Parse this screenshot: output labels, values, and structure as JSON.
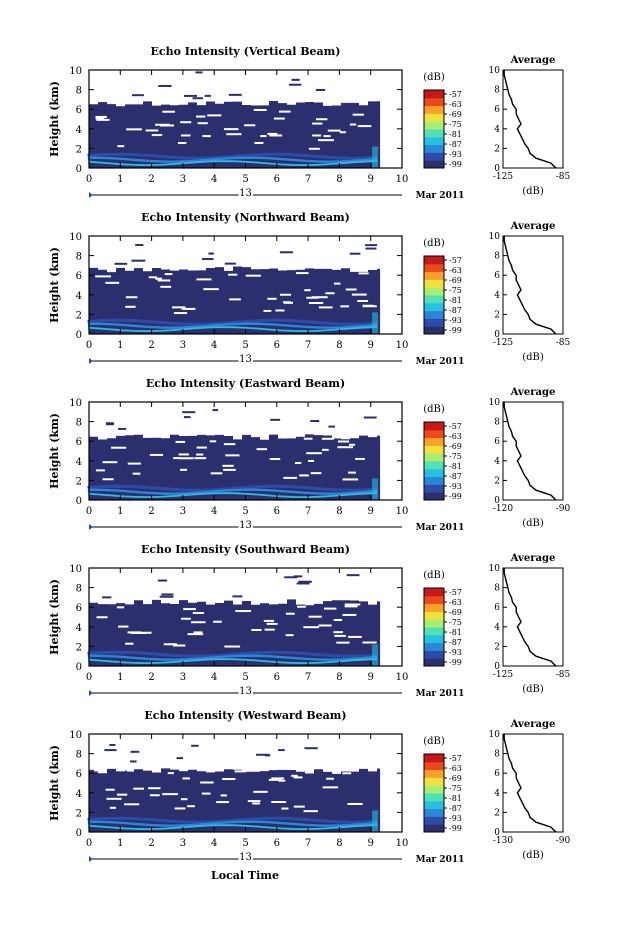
{
  "colorbar": {
    "unit": "(dB)",
    "tick_labels": [
      "-57",
      "-63",
      "-69",
      "-75",
      "-81",
      "-87",
      "-93",
      "-99"
    ],
    "colors": [
      "#2b2f6e",
      "#2f4ba8",
      "#2a86d6",
      "#27c0e0",
      "#52e0b6",
      "#a8ee72",
      "#f0e23a",
      "#f6a12a",
      "#ea4a1c",
      "#c61a1a"
    ]
  },
  "time_axis": {
    "tick_labels": [
      "0",
      "1",
      "2",
      "3",
      "4",
      "5",
      "6",
      "7",
      "8",
      "9",
      "10"
    ],
    "day_label": "13",
    "month_label": "Mar 2011",
    "xlabel": "Local Time"
  },
  "height_axis": {
    "ylabel": "Height (km)",
    "tick_labels": [
      "0",
      "2",
      "4",
      "6",
      "8",
      "10"
    ]
  },
  "panels": [
    {
      "title": "Echo Intensity (Vertical Beam)",
      "avg_title": "Average",
      "avg_xlabel": "(dB)",
      "avg_xticks": [
        "-125",
        "-85"
      ],
      "echo_top_km": 6.6,
      "noise_km": 9.3
    },
    {
      "title": "Echo Intensity (Northward Beam)",
      "avg_title": "Average",
      "avg_xlabel": "(dB)",
      "avg_xticks": [
        "-125",
        "-85"
      ],
      "echo_top_km": 6.6,
      "noise_km": 9.1
    },
    {
      "title": "Echo Intensity (Eastward Beam)",
      "avg_title": "Average",
      "avg_xlabel": "(dB)",
      "avg_xticks": [
        "-120",
        "-90"
      ],
      "echo_top_km": 6.4,
      "noise_km": 9.0
    },
    {
      "title": "Echo Intensity (Southward Beam)",
      "avg_title": "Average",
      "avg_xlabel": "(dB)",
      "avg_xticks": [
        "-125",
        "-85"
      ],
      "echo_top_km": 6.5,
      "noise_km": 9.2
    },
    {
      "title": "Echo Intensity (Westward Beam)",
      "avg_title": "Average",
      "avg_xlabel": "(dB)",
      "avg_xticks": [
        "-130",
        "-90"
      ],
      "echo_top_km": 6.2,
      "noise_km": 9.0
    }
  ],
  "chart_data": {
    "type": "heatmap",
    "x_range": [
      0,
      10
    ],
    "y_range": [
      0,
      10
    ],
    "data_end_x": 9.3,
    "colorbar_range": [
      -99,
      -57
    ],
    "average_profile": {
      "type": "line",
      "height_km": [
        0.0,
        0.5,
        1.0,
        1.5,
        2.0,
        2.5,
        3.0,
        3.5,
        4.0,
        4.5,
        5.0,
        5.5,
        6.0,
        6.5,
        7.0,
        7.5,
        8.0,
        8.5,
        9.0,
        9.5,
        10.0
      ],
      "value_frac": [
        0.88,
        0.8,
        0.55,
        0.45,
        0.42,
        0.36,
        0.32,
        0.28,
        0.24,
        0.3,
        0.26,
        0.22,
        0.22,
        0.16,
        0.14,
        0.1,
        0.08,
        0.06,
        0.04,
        0.02,
        0.02
      ]
    }
  }
}
